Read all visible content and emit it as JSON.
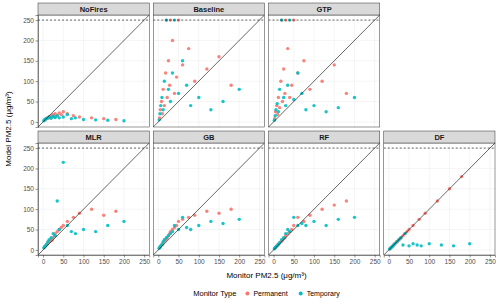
{
  "chart_data": {
    "type": "scatter",
    "x_label": "Monitor PM2.5 (μg/m³)",
    "y_label": "Model PM2.5 (μg/m³)",
    "legend_title": "Monitor Type",
    "legend": "bottom",
    "grid": true,
    "xlim": [
      -12.5,
      262.5
    ],
    "ylim": [
      -12.5,
      262.5
    ],
    "xticks": [
      0,
      50,
      100,
      150,
      200,
      250
    ],
    "yticks": [
      0,
      50,
      100,
      150,
      200,
      250
    ],
    "hline": 250,
    "series": [
      {
        "name": "Permanent",
        "color": "#F8766D"
      },
      {
        "name": "Temporary",
        "color": "#00BFC4"
      }
    ],
    "panels": [
      {
        "title": "NoFires",
        "series": [
          {
            "x": [
              3,
              5,
              8,
              10,
              12,
              15,
              18,
              20,
              22,
              25,
              28,
              30,
              35,
              40,
              45,
              50,
              60,
              75,
              90,
              120,
              150,
              180
            ],
            "values": [
              4,
              6,
              8,
              10,
              9,
              12,
              10,
              15,
              14,
              18,
              12,
              20,
              16,
              22,
              18,
              25,
              20,
              15,
              12,
              10,
              8,
              6
            ]
          },
          {
            "x": [
              2,
              4,
              6,
              9,
              12,
              15,
              20,
              25,
              30,
              35,
              40,
              50,
              60,
              70,
              80,
              100,
              130,
              160,
              200
            ],
            "values": [
              3,
              5,
              7,
              8,
              10,
              12,
              9,
              14,
              11,
              15,
              10,
              12,
              18,
              8,
              10,
              6,
              5,
              4,
              3
            ]
          }
        ]
      },
      {
        "title": "Baseline",
        "series": [
          {
            "x": [
              3,
              5,
              8,
              10,
              12,
              15,
              18,
              20,
              22,
              25,
              28,
              30,
              35,
              40,
              45,
              50,
              60,
              75,
              90,
              120,
              150,
              180
            ],
            "values": [
              10,
              30,
              50,
              20,
              80,
              40,
              120,
              250,
              60,
              150,
              90,
              250,
              200,
              70,
              110,
              250,
              140,
              180,
              100,
              130,
              160,
              90
            ]
          },
          {
            "x": [
              2,
              4,
              6,
              9,
              12,
              15,
              20,
              25,
              30,
              35,
              40,
              50,
              60,
              70,
              80,
              100,
              130,
              160,
              200
            ],
            "values": [
              5,
              20,
              40,
              60,
              30,
              100,
              250,
              80,
              50,
              120,
              250,
              70,
              150,
              90,
              40,
              60,
              30,
              50,
              80
            ]
          }
        ]
      },
      {
        "title": "GTP",
        "series": [
          {
            "x": [
              3,
              5,
              8,
              10,
              12,
              15,
              18,
              20,
              22,
              25,
              28,
              30,
              35,
              40,
              45,
              50,
              60,
              75,
              90,
              120,
              150,
              180
            ],
            "values": [
              8,
              25,
              40,
              18,
              60,
              35,
              100,
              250,
              50,
              130,
              70,
              250,
              180,
              60,
              90,
              250,
              120,
              150,
              80,
              100,
              140,
              70
            ]
          },
          {
            "x": [
              2,
              4,
              6,
              9,
              12,
              15,
              20,
              25,
              30,
              35,
              40,
              50,
              60,
              70,
              80,
              100,
              130,
              160,
              200
            ],
            "values": [
              4,
              15,
              30,
              45,
              25,
              80,
              250,
              60,
              40,
              90,
              250,
              55,
              120,
              70,
              30,
              40,
              25,
              35,
              60
            ]
          }
        ]
      },
      {
        "title": "MLR",
        "series": [
          {
            "x": [
              3,
              5,
              8,
              10,
              12,
              15,
              18,
              20,
              22,
              25,
              28,
              30,
              35,
              40,
              45,
              50,
              60,
              75,
              90,
              120,
              150,
              180
            ],
            "values": [
              6,
              9,
              12,
              14,
              18,
              20,
              22,
              25,
              24,
              30,
              35,
              40,
              45,
              50,
              55,
              60,
              70,
              80,
              90,
              100,
              85,
              95
            ]
          },
          {
            "x": [
              2,
              4,
              6,
              9,
              12,
              15,
              20,
              25,
              30,
              35,
              40,
              50,
              60,
              70,
              80,
              100,
              130,
              160,
              200
            ],
            "values": [
              5,
              8,
              10,
              14,
              20,
              25,
              30,
              40,
              35,
              120,
              50,
              215,
              60,
              45,
              40,
              50,
              45,
              60,
              70
            ]
          }
        ]
      },
      {
        "title": "GB",
        "series": [
          {
            "x": [
              3,
              5,
              8,
              10,
              12,
              15,
              18,
              20,
              22,
              25,
              28,
              30,
              35,
              40,
              45,
              50,
              60,
              75,
              90,
              120,
              150,
              180
            ],
            "values": [
              5,
              8,
              12,
              14,
              18,
              22,
              25,
              28,
              30,
              35,
              40,
              45,
              50,
              55,
              60,
              70,
              75,
              80,
              85,
              95,
              90,
              100
            ]
          },
          {
            "x": [
              2,
              4,
              6,
              9,
              12,
              15,
              20,
              25,
              30,
              35,
              40,
              50,
              60,
              70,
              80,
              100,
              130,
              160,
              200
            ],
            "values": [
              4,
              7,
              10,
              13,
              20,
              25,
              30,
              35,
              40,
              45,
              60,
              50,
              80,
              55,
              50,
              60,
              70,
              65,
              75
            ]
          }
        ]
      },
      {
        "title": "RF",
        "series": [
          {
            "x": [
              3,
              5,
              8,
              10,
              12,
              15,
              18,
              20,
              22,
              25,
              28,
              30,
              35,
              40,
              45,
              50,
              60,
              75,
              90,
              120,
              150,
              180
            ],
            "values": [
              4,
              6,
              10,
              12,
              14,
              17,
              20,
              22,
              24,
              28,
              30,
              35,
              40,
              45,
              50,
              60,
              80,
              70,
              85,
              100,
              110,
              120
            ]
          },
          {
            "x": [
              2,
              4,
              6,
              9,
              12,
              15,
              20,
              25,
              30,
              35,
              40,
              50,
              60,
              70,
              80,
              100,
              130,
              160,
              200
            ],
            "values": [
              3,
              5,
              8,
              10,
              14,
              18,
              25,
              30,
              40,
              50,
              45,
              80,
              60,
              65,
              60,
              70,
              60,
              75,
              80
            ]
          }
        ]
      },
      {
        "title": "DF",
        "series": [
          {
            "x": [
              3,
              5,
              8,
              10,
              12,
              15,
              18,
              20,
              22,
              25,
              28,
              30,
              35,
              40,
              45,
              50,
              60,
              75,
              90,
              120,
              150,
              180
            ],
            "values": [
              3,
              5,
              8,
              10,
              12,
              15,
              18,
              20,
              22,
              25,
              28,
              30,
              35,
              40,
              45,
              50,
              60,
              75,
              90,
              120,
              150,
              180
            ]
          },
          {
            "x": [
              2,
              4,
              6,
              9,
              12,
              15,
              20,
              25,
              30,
              35,
              40,
              50,
              60,
              70,
              80,
              100,
              130,
              160,
              200
            ],
            "values": [
              2,
              4,
              6,
              9,
              12,
              15,
              20,
              25,
              30,
              12,
              40,
              10,
              15,
              12,
              10,
              15,
              12,
              10,
              15
            ]
          }
        ]
      }
    ]
  }
}
